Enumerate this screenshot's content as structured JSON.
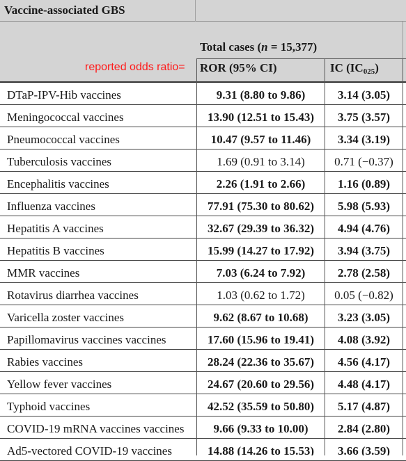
{
  "table": {
    "title": "Vaccine-associated GBS",
    "header": {
      "total_prefix": "Total cases (",
      "total_n": "n",
      "total_suffix": " = 15,377)",
      "ror": "ROR (95% CI)",
      "ic_main": "IC (IC",
      "ic_sub": "025",
      "ic_close": ")"
    },
    "annotation": "reported odds ratio=",
    "rows": [
      {
        "vaccine": "DTaP-IPV-Hib vaccines",
        "ror": "9.31 (8.80 to 9.86)",
        "ic": "3.14 (3.05)",
        "ror_bold": true,
        "ic_bold": true
      },
      {
        "vaccine": "Meningococcal vaccines",
        "ror": "13.90 (12.51 to 15.43)",
        "ic": "3.75 (3.57)",
        "ror_bold": true,
        "ic_bold": true
      },
      {
        "vaccine": "Pneumococcal vaccines",
        "ror": "10.47 (9.57 to 11.46)",
        "ic": "3.34 (3.19)",
        "ror_bold": true,
        "ic_bold": true
      },
      {
        "vaccine": "Tuberculosis vaccines",
        "ror": "1.69 (0.91 to 3.14)",
        "ic": "0.71 (−0.37)",
        "ror_bold": false,
        "ic_bold": false
      },
      {
        "vaccine": "Encephalitis vaccines",
        "ror": "2.26 (1.91 to 2.66)",
        "ic": "1.16 (0.89)",
        "ror_bold": true,
        "ic_bold": true
      },
      {
        "vaccine": "Influenza vaccines",
        "ror": "77.91 (75.30 to 80.62)",
        "ic": "5.98 (5.93)",
        "ror_bold": true,
        "ic_bold": true
      },
      {
        "vaccine": "Hepatitis A vaccines",
        "ror": "32.67 (29.39 to 36.32)",
        "ic": "4.94 (4.76)",
        "ror_bold": true,
        "ic_bold": true
      },
      {
        "vaccine": "Hepatitis B vaccines",
        "ror": "15.99 (14.27 to 17.92)",
        "ic": "3.94 (3.75)",
        "ror_bold": true,
        "ic_bold": true
      },
      {
        "vaccine": "MMR vaccines",
        "ror": "7.03 (6.24 to 7.92)",
        "ic": "2.78 (2.58)",
        "ror_bold": true,
        "ic_bold": true
      },
      {
        "vaccine": "Rotavirus diarrhea vaccines",
        "ror": "1.03 (0.62 to 1.72)",
        "ic": "0.05 (−0.82)",
        "ror_bold": false,
        "ic_bold": false
      },
      {
        "vaccine": "Varicella zoster vaccines",
        "ror": "9.62 (8.67 to 10.68)",
        "ic": "3.23 (3.05)",
        "ror_bold": true,
        "ic_bold": true
      },
      {
        "vaccine": "Papillomavirus vaccines vaccines",
        "ror": "17.60 (15.96 to 19.41)",
        "ic": "4.08 (3.92)",
        "ror_bold": true,
        "ic_bold": true
      },
      {
        "vaccine": "Rabies vaccines",
        "ror": "28.24 (22.36 to 35.67)",
        "ic": "4.56 (4.17)",
        "ror_bold": true,
        "ic_bold": true
      },
      {
        "vaccine": "Yellow fever vaccines",
        "ror": "24.67 (20.60 to 29.56)",
        "ic": "4.48 (4.17)",
        "ror_bold": true,
        "ic_bold": true
      },
      {
        "vaccine": "Typhoid vaccines",
        "ror": "42.52 (35.59 to 50.80)",
        "ic": "5.17 (4.87)",
        "ror_bold": true,
        "ic_bold": true
      },
      {
        "vaccine": "COVID-19 mRNA vaccines vaccines",
        "ror": "9.66 (9.33 to 10.00)",
        "ic": "2.84 (2.80)",
        "ror_bold": true,
        "ic_bold": true
      },
      {
        "vaccine": "Ad5-vectored COVID-19 vaccines",
        "ror": "14.88 (14.26 to 15.53)",
        "ic": "3.66 (3.59)",
        "ror_bold": true,
        "ic_bold": true
      }
    ]
  },
  "colors": {
    "header_bg": "#d4d4d4",
    "annotation": "#ff1a1a"
  }
}
